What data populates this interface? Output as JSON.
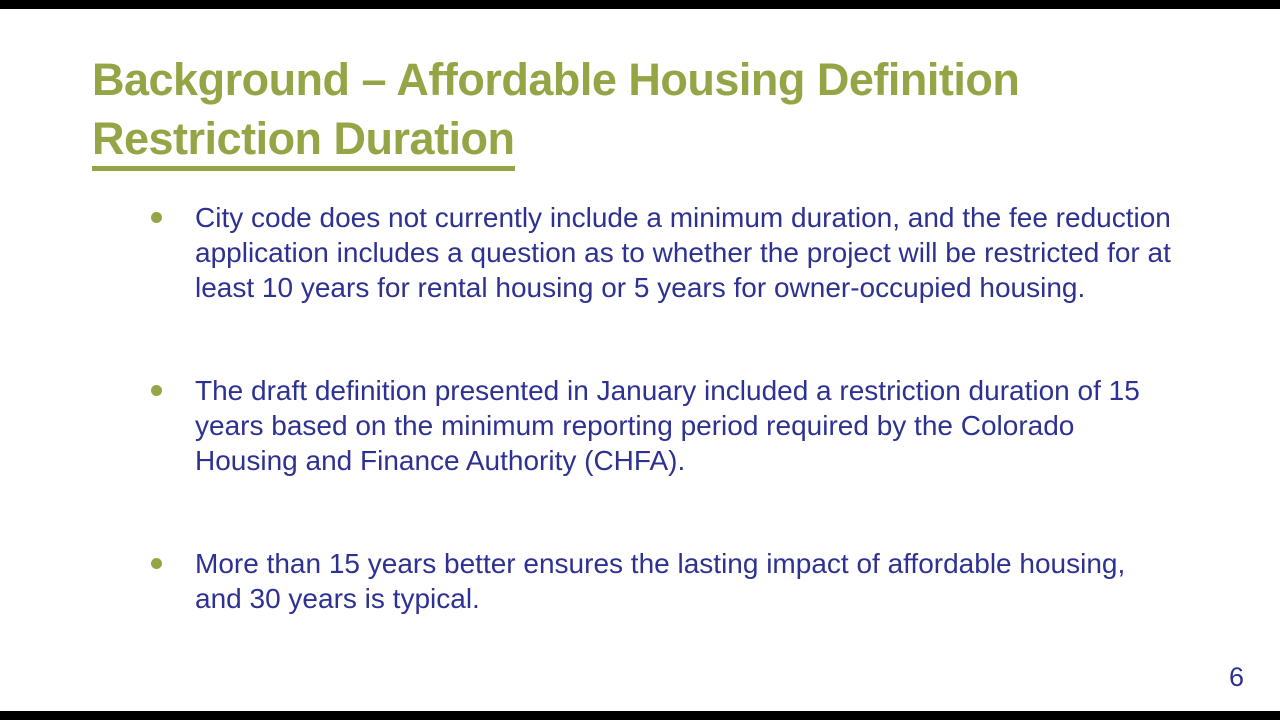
{
  "slide": {
    "title_line1": "Background – Affordable Housing Definition",
    "title_line2": "Restriction Duration",
    "bullets": [
      "City code does not currently include a minimum duration, and the fee reduction application includes a question as to whether the project will be restricted for at least 10 years for rental housing or 5 years for owner-occupied housing.",
      "The draft definition presented in January included a restriction duration of 15 years based on the minimum reporting period required by the Colorado Housing and Finance Authority (CHFA).",
      "More than 15 years better ensures the lasting impact of affordable housing, and 30 years is typical."
    ],
    "page_number": "6",
    "colors": {
      "title_green": "#94a545",
      "body_navy": "#2d3192",
      "background": "#ffffff",
      "letterbox": "#000000"
    }
  }
}
